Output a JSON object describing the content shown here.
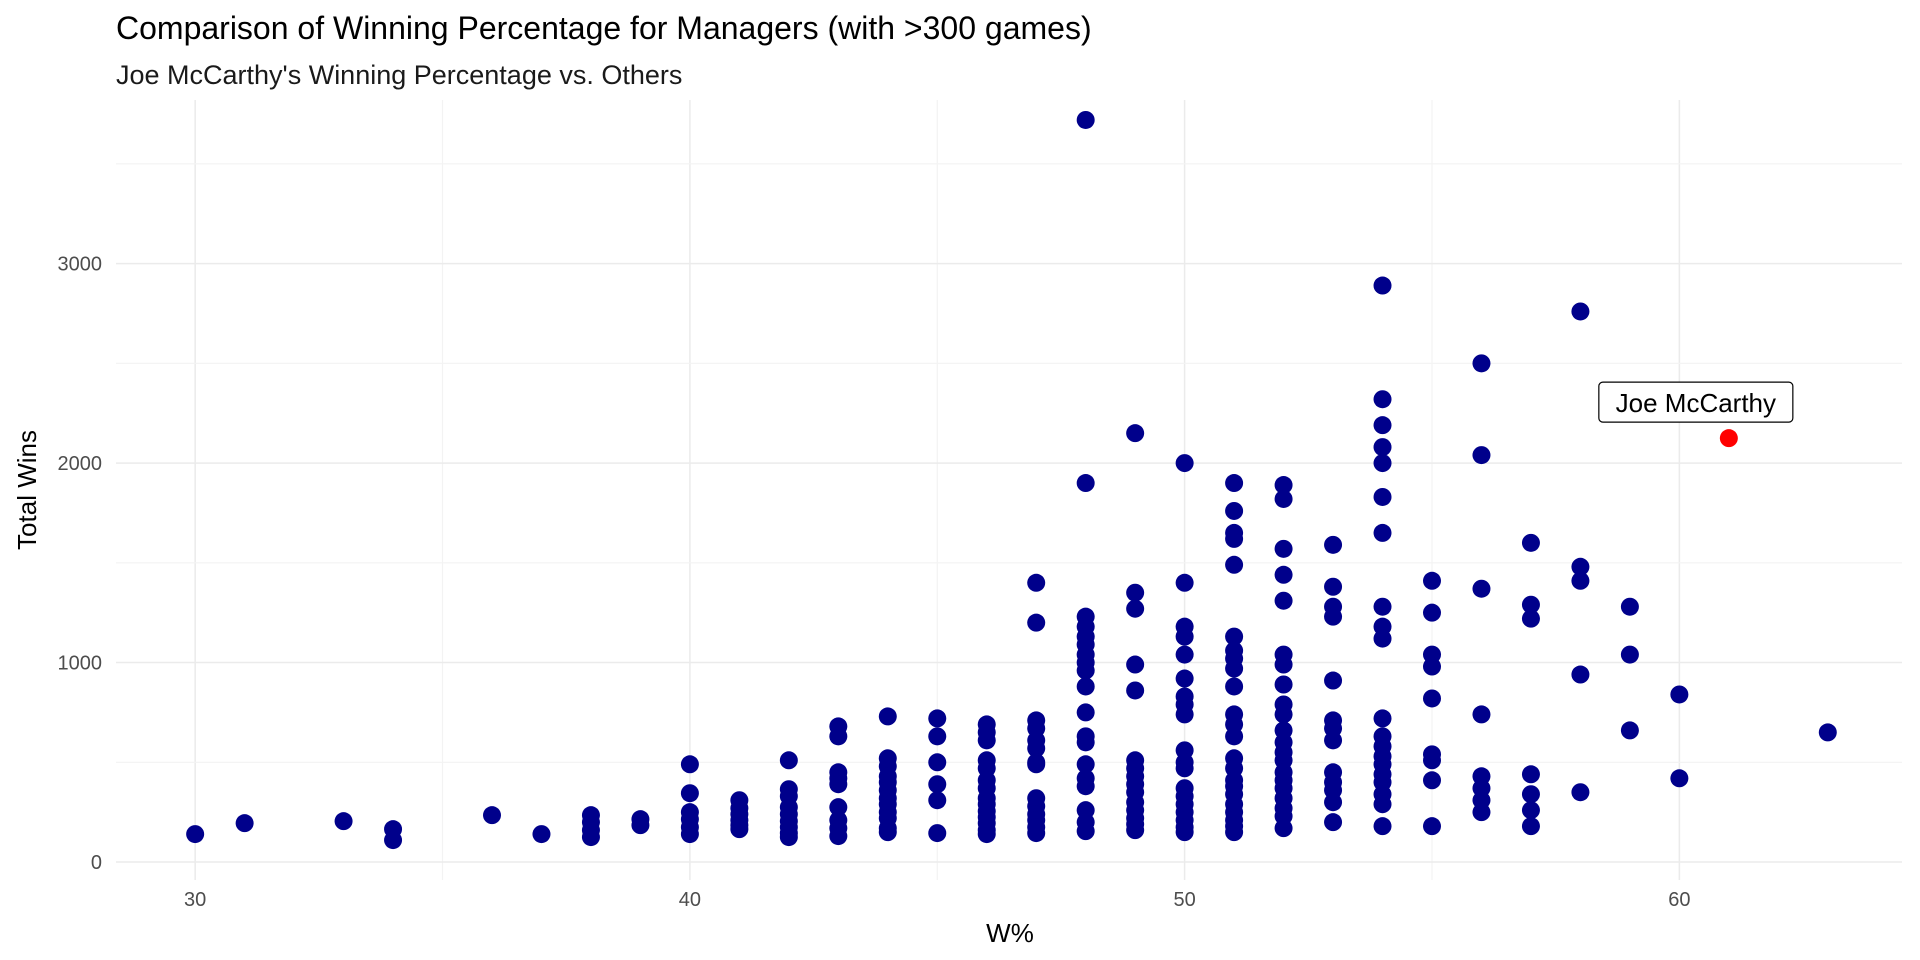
{
  "chart_data": {
    "type": "scatter",
    "title": "Comparison of Winning Percentage for Managers (with >300 games)",
    "subtitle": "Joe McCarthy's Winning Percentage vs. Others",
    "xlabel": "W%",
    "ylabel": "Total Wins",
    "xlim": [
      28.4,
      64.5
    ],
    "ylim": [
      -90,
      3820
    ],
    "x_ticks": [
      30,
      40,
      50,
      60
    ],
    "y_ticks": [
      0,
      1000,
      2000,
      3000
    ],
    "grid": true,
    "point_color": "#00008B",
    "highlight_color": "#FF0000",
    "series": [
      {
        "points": [
          [
            30,
            140
          ],
          [
            31,
            195
          ],
          [
            33,
            205
          ],
          [
            34,
            165
          ],
          [
            34,
            110
          ],
          [
            36,
            235
          ],
          [
            37,
            140
          ],
          [
            38,
            235
          ],
          [
            38,
            200
          ],
          [
            38,
            160
          ],
          [
            38,
            125
          ],
          [
            39,
            215
          ],
          [
            39,
            185
          ],
          [
            40,
            490
          ],
          [
            40,
            345
          ],
          [
            40,
            250
          ],
          [
            40,
            215
          ],
          [
            40,
            175
          ],
          [
            40,
            140
          ],
          [
            41,
            310
          ],
          [
            41,
            270
          ],
          [
            41,
            240
          ],
          [
            41,
            210
          ],
          [
            41,
            185
          ],
          [
            41,
            165
          ],
          [
            42,
            510
          ],
          [
            42,
            365
          ],
          [
            42,
            330
          ],
          [
            42,
            275
          ],
          [
            42,
            240
          ],
          [
            42,
            205
          ],
          [
            42,
            175
          ],
          [
            42,
            145
          ],
          [
            42,
            125
          ],
          [
            43,
            680
          ],
          [
            43,
            630
          ],
          [
            43,
            450
          ],
          [
            43,
            420
          ],
          [
            43,
            390
          ],
          [
            43,
            275
          ],
          [
            43,
            210
          ],
          [
            43,
            170
          ],
          [
            43,
            130
          ],
          [
            44,
            730
          ],
          [
            44,
            520
          ],
          [
            44,
            480
          ],
          [
            44,
            430
          ],
          [
            44,
            400
          ],
          [
            44,
            360
          ],
          [
            44,
            320
          ],
          [
            44,
            290
          ],
          [
            44,
            250
          ],
          [
            44,
            220
          ],
          [
            44,
            170
          ],
          [
            44,
            150
          ],
          [
            45,
            720
          ],
          [
            45,
            630
          ],
          [
            45,
            500
          ],
          [
            45,
            390
          ],
          [
            45,
            310
          ],
          [
            45,
            145
          ],
          [
            46,
            690
          ],
          [
            46,
            650
          ],
          [
            46,
            610
          ],
          [
            46,
            510
          ],
          [
            46,
            470
          ],
          [
            46,
            410
          ],
          [
            46,
            370
          ],
          [
            46,
            320
          ],
          [
            46,
            290
          ],
          [
            46,
            255
          ],
          [
            46,
            225
          ],
          [
            46,
            195
          ],
          [
            46,
            160
          ],
          [
            46,
            140
          ],
          [
            47,
            1400
          ],
          [
            47,
            1200
          ],
          [
            47,
            710
          ],
          [
            47,
            670
          ],
          [
            47,
            610
          ],
          [
            47,
            570
          ],
          [
            47,
            500
          ],
          [
            47,
            490
          ],
          [
            47,
            320
          ],
          [
            47,
            280
          ],
          [
            47,
            240
          ],
          [
            47,
            210
          ],
          [
            47,
            175
          ],
          [
            47,
            145
          ],
          [
            48,
            3720
          ],
          [
            48,
            1900
          ],
          [
            48,
            1230
          ],
          [
            48,
            1180
          ],
          [
            48,
            1130
          ],
          [
            48,
            1090
          ],
          [
            48,
            1040
          ],
          [
            48,
            1000
          ],
          [
            48,
            960
          ],
          [
            48,
            880
          ],
          [
            48,
            750
          ],
          [
            48,
            630
          ],
          [
            48,
            600
          ],
          [
            48,
            490
          ],
          [
            48,
            420
          ],
          [
            48,
            380
          ],
          [
            48,
            260
          ],
          [
            48,
            200
          ],
          [
            48,
            155
          ],
          [
            49,
            2150
          ],
          [
            49,
            1350
          ],
          [
            49,
            1270
          ],
          [
            49,
            990
          ],
          [
            49,
            860
          ],
          [
            49,
            510
          ],
          [
            49,
            470
          ],
          [
            49,
            430
          ],
          [
            49,
            390
          ],
          [
            49,
            350
          ],
          [
            49,
            300
          ],
          [
            49,
            260
          ],
          [
            49,
            220
          ],
          [
            49,
            190
          ],
          [
            49,
            160
          ],
          [
            50,
            2000
          ],
          [
            50,
            1400
          ],
          [
            50,
            1180
          ],
          [
            50,
            1130
          ],
          [
            50,
            1040
          ],
          [
            50,
            920
          ],
          [
            50,
            830
          ],
          [
            50,
            790
          ],
          [
            50,
            740
          ],
          [
            50,
            560
          ],
          [
            50,
            500
          ],
          [
            50,
            470
          ],
          [
            50,
            370
          ],
          [
            50,
            330
          ],
          [
            50,
            290
          ],
          [
            50,
            250
          ],
          [
            50,
            210
          ],
          [
            50,
            175
          ],
          [
            50,
            150
          ],
          [
            51,
            1900
          ],
          [
            51,
            1760
          ],
          [
            51,
            1650
          ],
          [
            51,
            1620
          ],
          [
            51,
            1490
          ],
          [
            51,
            1130
          ],
          [
            51,
            1060
          ],
          [
            51,
            1020
          ],
          [
            51,
            970
          ],
          [
            51,
            880
          ],
          [
            51,
            740
          ],
          [
            51,
            690
          ],
          [
            51,
            630
          ],
          [
            51,
            520
          ],
          [
            51,
            470
          ],
          [
            51,
            410
          ],
          [
            51,
            380
          ],
          [
            51,
            340
          ],
          [
            51,
            290
          ],
          [
            51,
            250
          ],
          [
            51,
            210
          ],
          [
            51,
            180
          ],
          [
            51,
            150
          ],
          [
            52,
            1890
          ],
          [
            52,
            1820
          ],
          [
            52,
            1570
          ],
          [
            52,
            1440
          ],
          [
            52,
            1310
          ],
          [
            52,
            1040
          ],
          [
            52,
            990
          ],
          [
            52,
            890
          ],
          [
            52,
            790
          ],
          [
            52,
            740
          ],
          [
            52,
            660
          ],
          [
            52,
            600
          ],
          [
            52,
            550
          ],
          [
            52,
            510
          ],
          [
            52,
            450
          ],
          [
            52,
            410
          ],
          [
            52,
            370
          ],
          [
            52,
            320
          ],
          [
            52,
            270
          ],
          [
            52,
            230
          ],
          [
            52,
            170
          ],
          [
            53,
            1590
          ],
          [
            53,
            1380
          ],
          [
            53,
            1280
          ],
          [
            53,
            1230
          ],
          [
            53,
            910
          ],
          [
            53,
            710
          ],
          [
            53,
            670
          ],
          [
            53,
            610
          ],
          [
            53,
            450
          ],
          [
            53,
            400
          ],
          [
            53,
            360
          ],
          [
            53,
            300
          ],
          [
            53,
            200
          ],
          [
            54,
            2890
          ],
          [
            54,
            2320
          ],
          [
            54,
            2190
          ],
          [
            54,
            2080
          ],
          [
            54,
            2000
          ],
          [
            54,
            1830
          ],
          [
            54,
            1650
          ],
          [
            54,
            1280
          ],
          [
            54,
            1180
          ],
          [
            54,
            1120
          ],
          [
            54,
            720
          ],
          [
            54,
            630
          ],
          [
            54,
            580
          ],
          [
            54,
            530
          ],
          [
            54,
            490
          ],
          [
            54,
            440
          ],
          [
            54,
            400
          ],
          [
            54,
            340
          ],
          [
            54,
            290
          ],
          [
            54,
            180
          ],
          [
            55,
            1410
          ],
          [
            55,
            1250
          ],
          [
            55,
            1040
          ],
          [
            55,
            980
          ],
          [
            55,
            820
          ],
          [
            55,
            540
          ],
          [
            55,
            510
          ],
          [
            55,
            410
          ],
          [
            55,
            180
          ],
          [
            56,
            2500
          ],
          [
            56,
            2040
          ],
          [
            56,
            1370
          ],
          [
            56,
            740
          ],
          [
            56,
            430
          ],
          [
            56,
            370
          ],
          [
            56,
            310
          ],
          [
            56,
            250
          ],
          [
            57,
            1600
          ],
          [
            57,
            1290
          ],
          [
            57,
            1220
          ],
          [
            57,
            440
          ],
          [
            57,
            340
          ],
          [
            57,
            260
          ],
          [
            57,
            180
          ],
          [
            58,
            2760
          ],
          [
            58,
            1480
          ],
          [
            58,
            1410
          ],
          [
            58,
            940
          ],
          [
            58,
            350
          ],
          [
            59,
            1280
          ],
          [
            59,
            1040
          ],
          [
            59,
            660
          ],
          [
            60,
            840
          ],
          [
            60,
            420
          ],
          [
            63,
            650
          ]
        ]
      },
      {
        "points": [
          [
            61,
            2125
          ]
        ],
        "label": "Joe McCarthy"
      }
    ]
  }
}
